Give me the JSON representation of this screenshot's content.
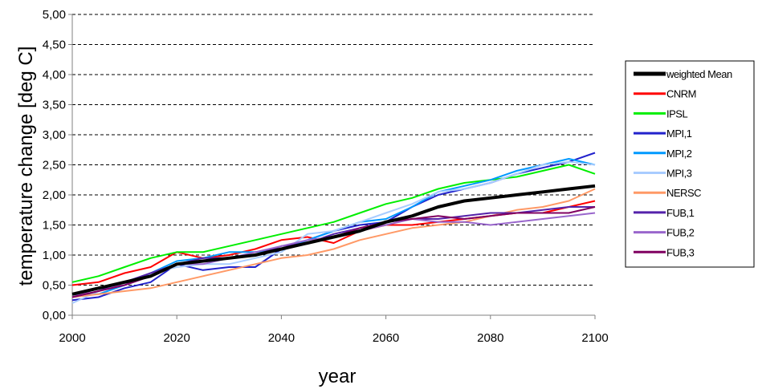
{
  "chart_data": {
    "type": "line",
    "title": "",
    "xlabel": "year",
    "ylabel": "temperature change [deg C]",
    "xlim": [
      2000,
      2100
    ],
    "ylim": [
      0,
      5
    ],
    "x_ticks": [
      "2000",
      "2020",
      "2040",
      "2060",
      "2080",
      "2100"
    ],
    "y_ticks": [
      "0,00",
      "0,50",
      "1,00",
      "1,50",
      "2,00",
      "2,50",
      "3,00",
      "3,50",
      "4,00",
      "4,50",
      "5,00"
    ],
    "grid": "horizontal dashed",
    "legend_position": "right",
    "x": [
      2000,
      2005,
      2010,
      2015,
      2020,
      2025,
      2030,
      2035,
      2040,
      2045,
      2050,
      2055,
      2060,
      2065,
      2070,
      2075,
      2080,
      2085,
      2090,
      2095,
      2100
    ],
    "series": [
      {
        "name": "weighted Mean",
        "color": "#000000",
        "width": 4,
        "values": [
          0.35,
          0.45,
          0.55,
          0.65,
          0.85,
          0.9,
          0.95,
          1.0,
          1.1,
          1.2,
          1.3,
          1.4,
          1.55,
          1.65,
          1.8,
          1.9,
          1.95,
          2.0,
          2.05,
          2.1,
          2.15
        ]
      },
      {
        "name": "CNRM",
        "color": "#ff0000",
        "width": 2,
        "values": [
          0.5,
          0.55,
          0.7,
          0.8,
          1.05,
          0.95,
          1.0,
          1.1,
          1.25,
          1.3,
          1.2,
          1.4,
          1.5,
          1.5,
          1.55,
          1.6,
          1.65,
          1.7,
          1.7,
          1.8,
          1.9
        ]
      },
      {
        "name": "IPSL",
        "color": "#00ee00",
        "width": 2,
        "values": [
          0.55,
          0.65,
          0.8,
          0.95,
          1.05,
          1.05,
          1.15,
          1.25,
          1.35,
          1.45,
          1.55,
          1.7,
          1.85,
          1.95,
          2.1,
          2.2,
          2.25,
          2.3,
          2.4,
          2.5,
          2.35
        ]
      },
      {
        "name": "MPI,1",
        "color": "#2222cc",
        "width": 2,
        "values": [
          0.25,
          0.3,
          0.45,
          0.55,
          0.85,
          0.75,
          0.8,
          0.8,
          1.1,
          1.25,
          1.4,
          1.5,
          1.55,
          1.8,
          2.0,
          2.1,
          2.2,
          2.35,
          2.45,
          2.55,
          2.7
        ]
      },
      {
        "name": "MPI,2",
        "color": "#0099ff",
        "width": 2,
        "values": [
          0.35,
          0.35,
          0.5,
          0.7,
          0.9,
          0.95,
          1.05,
          1.05,
          1.1,
          1.25,
          1.4,
          1.55,
          1.6,
          1.8,
          2.05,
          2.15,
          2.25,
          2.4,
          2.5,
          2.6,
          2.5
        ]
      },
      {
        "name": "MPI,3",
        "color": "#a8ccff",
        "width": 2,
        "values": [
          0.2,
          0.4,
          0.55,
          0.7,
          0.8,
          0.85,
          0.85,
          0.95,
          1.05,
          1.35,
          1.4,
          1.55,
          1.7,
          1.85,
          2.05,
          2.1,
          2.2,
          2.35,
          2.5,
          2.55,
          2.5
        ]
      },
      {
        "name": "NERSC",
        "color": "#ff9966",
        "width": 2,
        "values": [
          0.3,
          0.35,
          0.4,
          0.45,
          0.55,
          0.65,
          0.75,
          0.85,
          0.95,
          1.0,
          1.1,
          1.25,
          1.35,
          1.45,
          1.5,
          1.55,
          1.65,
          1.75,
          1.8,
          1.9,
          2.1
        ]
      },
      {
        "name": "FUB,1",
        "color": "#5522aa",
        "width": 2,
        "values": [
          0.3,
          0.4,
          0.55,
          0.7,
          0.85,
          0.95,
          0.95,
          1.0,
          1.15,
          1.2,
          1.35,
          1.45,
          1.55,
          1.6,
          1.6,
          1.65,
          1.7,
          1.7,
          1.75,
          1.8,
          1.8
        ]
      },
      {
        "name": "FUB,2",
        "color": "#9966cc",
        "width": 2,
        "values": [
          0.3,
          0.45,
          0.5,
          0.65,
          0.85,
          0.85,
          0.95,
          1.05,
          1.15,
          1.25,
          1.3,
          1.4,
          1.5,
          1.6,
          1.55,
          1.55,
          1.5,
          1.55,
          1.6,
          1.65,
          1.7
        ]
      },
      {
        "name": "FUB,3",
        "color": "#800060",
        "width": 2,
        "values": [
          0.3,
          0.4,
          0.5,
          0.65,
          0.85,
          0.9,
          0.95,
          1.0,
          1.1,
          1.2,
          1.3,
          1.45,
          1.55,
          1.6,
          1.65,
          1.6,
          1.65,
          1.7,
          1.7,
          1.7,
          1.8
        ]
      }
    ]
  }
}
